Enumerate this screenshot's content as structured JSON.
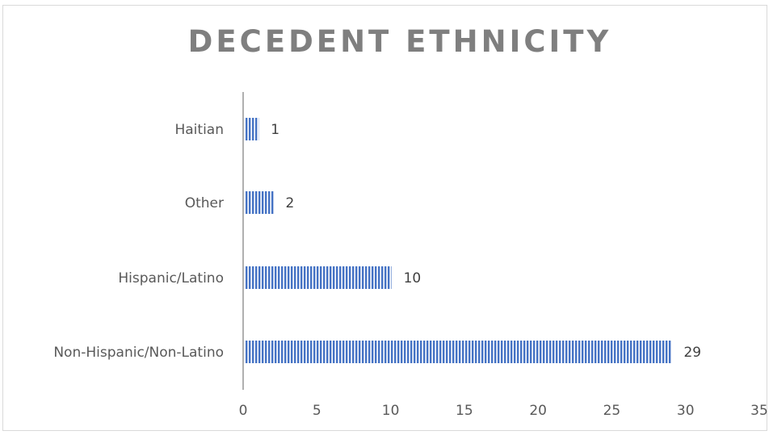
{
  "chart_data": {
    "type": "bar",
    "orientation": "horizontal",
    "title": "DECEDENT ETHNICITY",
    "categories": [
      "Haitian",
      "Other",
      "Hispanic/Latino",
      "Non-Hispanic/Non-Latino"
    ],
    "values": [
      1,
      2,
      10,
      29
    ],
    "data_labels": [
      "1",
      "2",
      "10",
      "29"
    ],
    "xlim": [
      0,
      35
    ],
    "x_ticks": [
      "0",
      "5",
      "10",
      "15",
      "20",
      "25",
      "30",
      "35"
    ],
    "xlabel": "",
    "ylabel": "",
    "grid": false,
    "legend": "none",
    "bar_color": "#4472c4",
    "bar_pattern": "vertical-stripes"
  }
}
